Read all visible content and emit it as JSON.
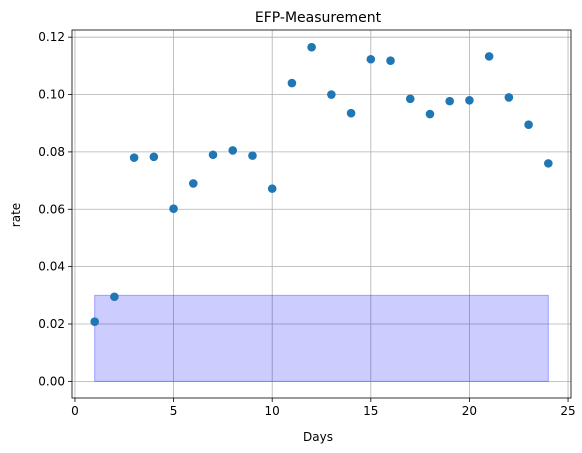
{
  "chart_data": {
    "type": "scatter",
    "title": "EFP-Measurement",
    "xlabel": "Days",
    "ylabel": "rate",
    "xlim": [
      -0.15,
      25.15
    ],
    "ylim": [
      -0.0058,
      0.1225
    ],
    "xticks": [
      0,
      5,
      10,
      15,
      20,
      25
    ],
    "xtick_labels": [
      "0",
      "5",
      "10",
      "15",
      "20",
      "25"
    ],
    "yticks": [
      0.0,
      0.02,
      0.04,
      0.06,
      0.08,
      0.1,
      0.12
    ],
    "ytick_labels": [
      "0.00",
      "0.02",
      "0.04",
      "0.06",
      "0.08",
      "0.10",
      "0.12"
    ],
    "grid": true,
    "series": [
      {
        "color": "#1f77b4",
        "points": [
          {
            "x": 1,
            "y": 0.0208
          },
          {
            "x": 2,
            "y": 0.0295
          },
          {
            "x": 3,
            "y": 0.078
          },
          {
            "x": 4,
            "y": 0.0783
          },
          {
            "x": 5,
            "y": 0.0602
          },
          {
            "x": 6,
            "y": 0.069
          },
          {
            "x": 7,
            "y": 0.079
          },
          {
            "x": 8,
            "y": 0.0805
          },
          {
            "x": 9,
            "y": 0.0787
          },
          {
            "x": 10,
            "y": 0.0672
          },
          {
            "x": 11,
            "y": 0.104
          },
          {
            "x": 12,
            "y": 0.1165
          },
          {
            "x": 13,
            "y": 0.1
          },
          {
            "x": 14,
            "y": 0.0935
          },
          {
            "x": 15,
            "y": 0.1123
          },
          {
            "x": 16,
            "y": 0.1118
          },
          {
            "x": 17,
            "y": 0.0985
          },
          {
            "x": 18,
            "y": 0.0932
          },
          {
            "x": 19,
            "y": 0.0977
          },
          {
            "x": 20,
            "y": 0.098
          },
          {
            "x": 21,
            "y": 0.1133
          },
          {
            "x": 22,
            "y": 0.099
          },
          {
            "x": 23,
            "y": 0.0895
          },
          {
            "x": 24,
            "y": 0.076
          }
        ]
      }
    ],
    "shaded_region": {
      "x": [
        1,
        24
      ],
      "y": [
        0.0,
        0.03
      ],
      "fill": "#0000ff",
      "opacity": 0.2
    }
  }
}
